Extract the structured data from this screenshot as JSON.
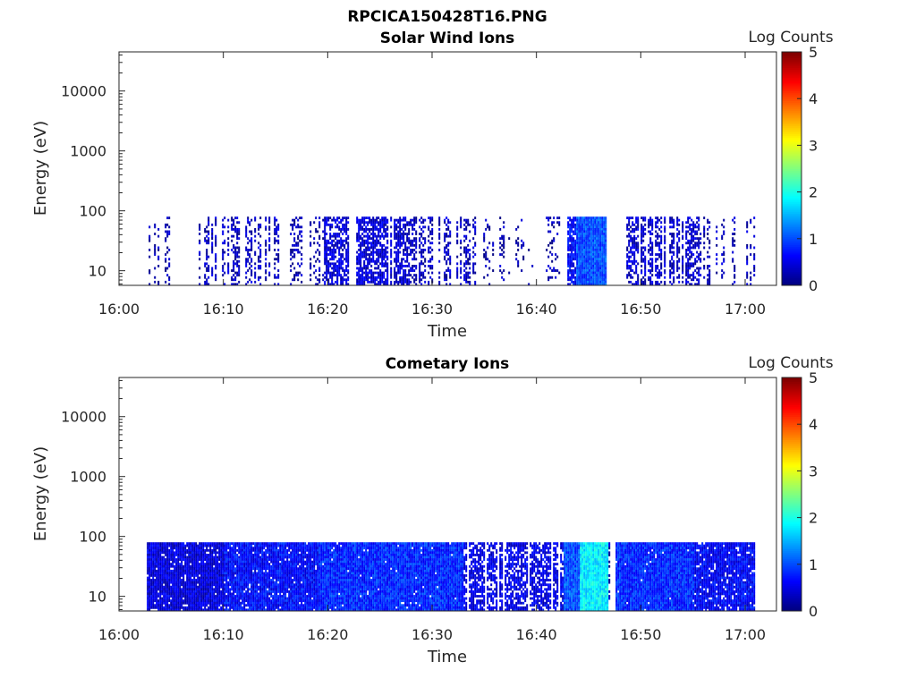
{
  "figure": {
    "title": "RPCICA150428T16.PNG"
  },
  "chart_data": [
    {
      "type": "heatmap",
      "title": "Solar Wind Ions",
      "xlabel": "Time",
      "ylabel": "Energy (eV)",
      "x_ticks": [
        "16:00",
        "16:10",
        "16:20",
        "16:30",
        "16:40",
        "16:50",
        "17:00"
      ],
      "xlim_minutes": [
        0,
        63
      ],
      "y_scale": "log",
      "y_ticks": [
        10,
        100,
        1000,
        10000
      ],
      "y_tick_labels": [
        "10",
        "100",
        "1000",
        "10000"
      ],
      "ylim": [
        5.7,
        45000
      ],
      "colorbar": {
        "label": "Log Counts",
        "ticks": [
          "0",
          "1",
          "2",
          "3",
          "4",
          "5"
        ],
        "range": [
          0,
          5
        ],
        "colormap": "jet"
      },
      "data_extent": {
        "t_start_minutes": 2.5,
        "t_end_minutes": 60.8,
        "energy_max": 80
      },
      "intervals": [
        {
          "t_start": 2.5,
          "t_end": 5.5,
          "density": 0.35,
          "level": 0.2
        },
        {
          "t_start": 7.5,
          "t_end": 15.5,
          "density": 0.45,
          "level": 0.3
        },
        {
          "t_start": 15.5,
          "t_end": 19.5,
          "density": 0.3,
          "level": 0.2
        },
        {
          "t_start": 19.5,
          "t_end": 27.5,
          "density": 0.7,
          "level": 0.4
        },
        {
          "t_start": 27.5,
          "t_end": 34.5,
          "density": 0.5,
          "level": 0.3
        },
        {
          "t_start": 34.5,
          "t_end": 39.5,
          "density": 0.2,
          "level": 0.2
        },
        {
          "t_start": 39.5,
          "t_end": 42.8,
          "density": 0.15,
          "level": 0.2
        },
        {
          "t_start": 42.8,
          "t_end": 43.7,
          "density": 0.8,
          "level": 0.6
        },
        {
          "t_start": 43.7,
          "t_end": 46.7,
          "density": 1.0,
          "level": 1.0
        },
        {
          "t_start": 46.7,
          "t_end": 48.5,
          "density": 0.2,
          "level": 0.2
        },
        {
          "t_start": 48.5,
          "t_end": 55.5,
          "density": 0.6,
          "level": 0.35
        },
        {
          "t_start": 55.5,
          "t_end": 60.8,
          "density": 0.35,
          "level": 0.25
        }
      ]
    },
    {
      "type": "heatmap",
      "title": "Cometary Ions",
      "xlabel": "Time",
      "ylabel": "Energy (eV)",
      "x_ticks": [
        "16:00",
        "16:10",
        "16:20",
        "16:30",
        "16:40",
        "16:50",
        "17:00"
      ],
      "xlim_minutes": [
        0,
        63
      ],
      "y_scale": "log",
      "y_ticks": [
        10,
        100,
        1000,
        10000
      ],
      "y_tick_labels": [
        "10",
        "100",
        "1000",
        "10000"
      ],
      "ylim": [
        5.7,
        45000
      ],
      "colorbar": {
        "label": "Log Counts",
        "ticks": [
          "0",
          "1",
          "2",
          "3",
          "4",
          "5"
        ],
        "range": [
          0,
          5
        ],
        "colormap": "jet"
      },
      "data_extent": {
        "t_start_minutes": 2.5,
        "t_end_minutes": 60.8,
        "energy_max": 80
      },
      "intervals": [
        {
          "t_start": 2.5,
          "t_end": 10.0,
          "density": 0.95,
          "level": 0.45
        },
        {
          "t_start": 10.0,
          "t_end": 19.0,
          "density": 0.95,
          "level": 0.65
        },
        {
          "t_start": 19.0,
          "t_end": 33.0,
          "density": 0.98,
          "level": 0.8
        },
        {
          "t_start": 33.0,
          "t_end": 42.5,
          "density": 0.7,
          "level": 0.5
        },
        {
          "t_start": 42.5,
          "t_end": 44.0,
          "density": 1.0,
          "level": 1.0
        },
        {
          "t_start": 44.0,
          "t_end": 46.8,
          "density": 1.0,
          "level": 1.8
        },
        {
          "t_start": 46.8,
          "t_end": 47.5,
          "density": 0.4,
          "level": 0.2
        },
        {
          "t_start": 47.5,
          "t_end": 55.0,
          "density": 0.98,
          "level": 0.8
        },
        {
          "t_start": 55.0,
          "t_end": 60.8,
          "density": 0.9,
          "level": 0.6
        }
      ]
    }
  ]
}
